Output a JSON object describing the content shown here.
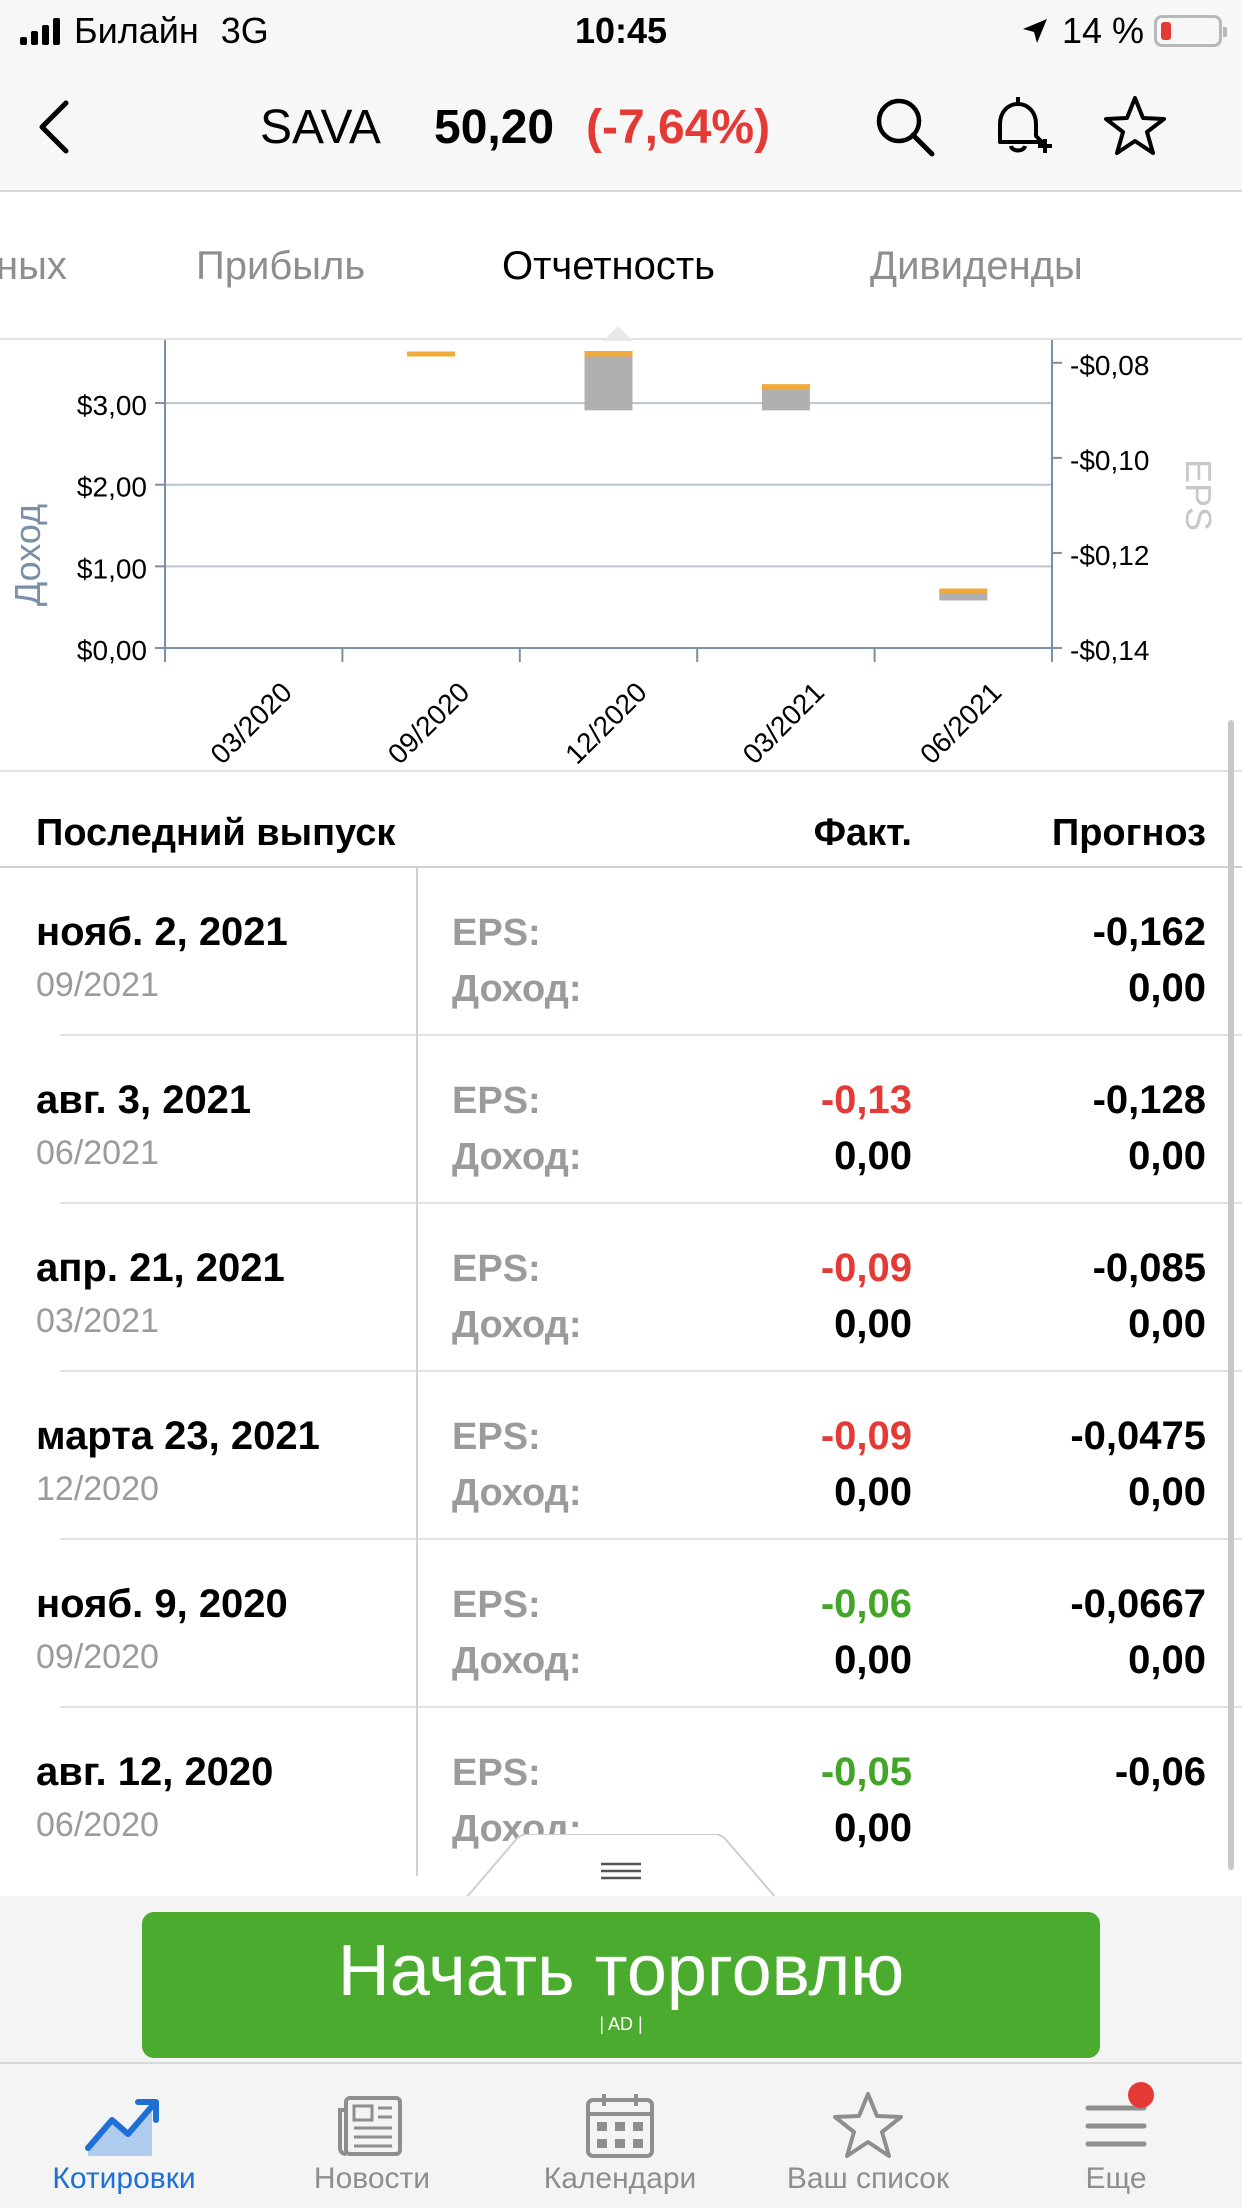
{
  "status_bar": {
    "carrier": "Билайн",
    "network": "3G",
    "time": "10:45",
    "battery": "14 %"
  },
  "header": {
    "ticker": "SAVA",
    "price": "50,20",
    "change": "(-7,64%)",
    "icons": [
      "back-chevron-icon",
      "search-icon",
      "bell-add-icon",
      "star-icon"
    ]
  },
  "tabs": {
    "items": [
      {
        "label": "ных"
      },
      {
        "label": "Прибыль"
      },
      {
        "label": "Отчетность",
        "active": true
      },
      {
        "label": "Дивиденды"
      }
    ]
  },
  "chart_data": {
    "type": "bar",
    "categories": [
      "03/2020",
      "09/2020",
      "12/2020",
      "03/2021",
      "06/2021"
    ],
    "ylabel": "Доход",
    "y2label": "EPS",
    "yticks": [
      "$0,00",
      "$1,00",
      "$2,00",
      "$3,00"
    ],
    "y2ticks": [
      "-$0,14",
      "-$0,12",
      "-$0,10",
      "-$0,08"
    ],
    "ylim": [
      0,
      3.65
    ],
    "y2lim": [
      -0.14,
      -0.0773
    ],
    "series": [
      {
        "values": [
          null,
          -0.0667,
          -0.0475,
          -0.085,
          -0.128
        ]
      },
      {
        "values": [
          null,
          -0.06,
          -0.09,
          -0.09,
          -0.13
        ]
      }
    ],
    "colors": {
      "bar": "#b0b0b0",
      "marker": "#f2a93b",
      "grid": "#b9c5d3",
      "axis": "#7a8fa8"
    },
    "grid": true
  },
  "table": {
    "headers": {
      "release": "Последний выпуск",
      "fact": "Факт.",
      "forecast": "Прогноз"
    },
    "eps_label": "EPS:",
    "revenue_label": "Доход:",
    "rows": [
      {
        "date": "нояб. 2, 2021",
        "period": "09/2021",
        "eps_fact": "",
        "eps_color": "",
        "eps_forecast": "-0,162",
        "rev_fact": "",
        "rev_forecast": "0,00"
      },
      {
        "date": "авг. 3, 2021",
        "period": "06/2021",
        "eps_fact": "-0,13",
        "eps_color": "red",
        "eps_forecast": "-0,128",
        "rev_fact": "0,00",
        "rev_forecast": "0,00"
      },
      {
        "date": "апр. 21, 2021",
        "period": "03/2021",
        "eps_fact": "-0,09",
        "eps_color": "red",
        "eps_forecast": "-0,085",
        "rev_fact": "0,00",
        "rev_forecast": "0,00"
      },
      {
        "date": "марта 23, 2021",
        "period": "12/2020",
        "eps_fact": "-0,09",
        "eps_color": "red",
        "eps_forecast": "-0,0475",
        "rev_fact": "0,00",
        "rev_forecast": "0,00"
      },
      {
        "date": "нояб. 9, 2020",
        "period": "09/2020",
        "eps_fact": "-0,06",
        "eps_color": "green",
        "eps_forecast": "-0,0667",
        "rev_fact": "0,00",
        "rev_forecast": "0,00"
      },
      {
        "date": "авг. 12, 2020",
        "period": "06/2020",
        "eps_fact": "-0,05",
        "eps_color": "green",
        "eps_forecast": "-0,06",
        "rev_fact": "0,00",
        "rev_forecast": ""
      }
    ]
  },
  "trade_button": {
    "label": "Начать торговлю",
    "ad": "| AD |"
  },
  "bottom_nav": {
    "items": [
      {
        "label": "Котировки",
        "icon": "chart-trend-icon",
        "active": true
      },
      {
        "label": "Новости",
        "icon": "newspaper-icon"
      },
      {
        "label": "Календари",
        "icon": "calendar-icon"
      },
      {
        "label": "Ваш список",
        "icon": "star-icon"
      },
      {
        "label": "Еще",
        "icon": "menu-icon",
        "badge": true
      }
    ]
  }
}
